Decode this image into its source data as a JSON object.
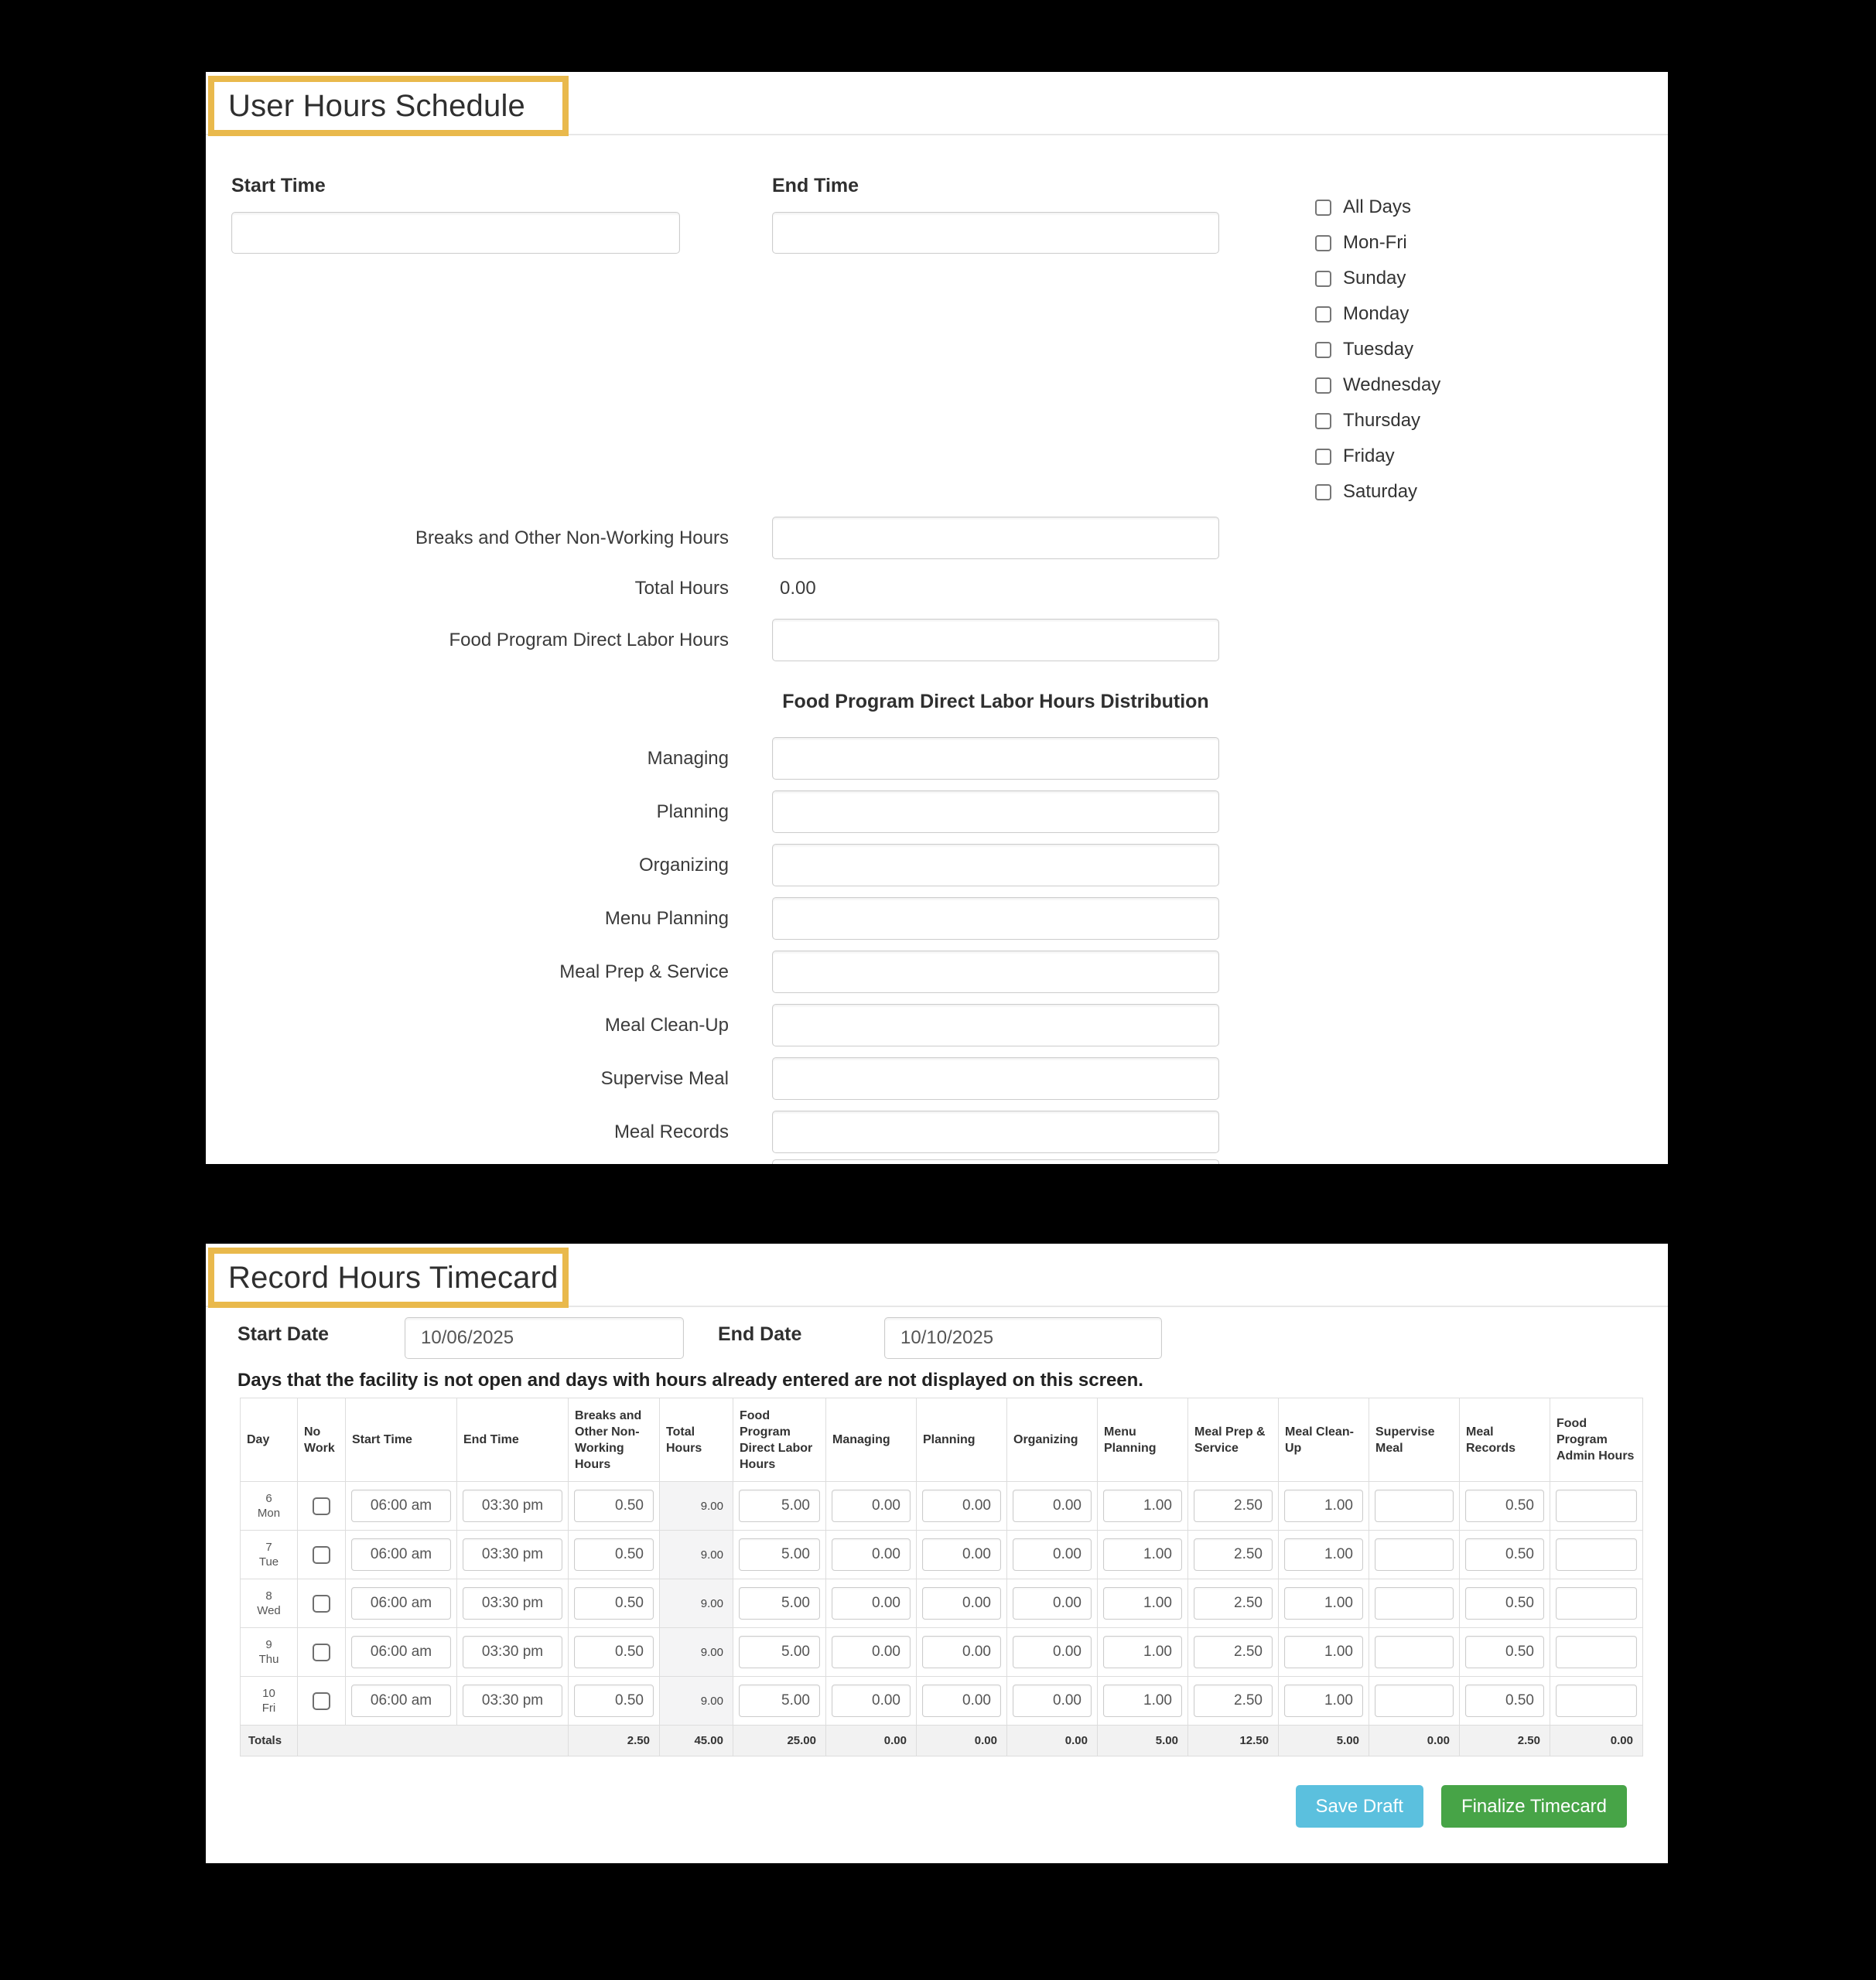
{
  "schedule_panel": {
    "title": "User Hours Schedule",
    "start_time_label": "Start Time",
    "end_time_label": "End Time",
    "start_time_value": "",
    "end_time_value": "",
    "day_checkboxes": [
      "All Days",
      "Mon-Fri",
      "Sunday",
      "Monday",
      "Tuesday",
      "Wednesday",
      "Thursday",
      "Friday",
      "Saturday"
    ],
    "breaks_label": "Breaks and Other Non-Working Hours",
    "total_hours_label": "Total Hours",
    "total_hours_value": "0.00",
    "food_program_label": "Food Program Direct Labor Hours",
    "distribution_heading": "Food Program Direct Labor Hours Distribution",
    "distribution_rows": [
      "Managing",
      "Planning",
      "Organizing",
      "Menu Planning",
      "Meal Prep & Service",
      "Meal Clean-Up",
      "Supervise Meal",
      "Meal Records"
    ]
  },
  "timecard_panel": {
    "title": "Record Hours Timecard",
    "start_date_label": "Start Date",
    "start_date_value": "10/06/2025",
    "end_date_label": "End Date",
    "end_date_value": "10/10/2025",
    "note": "Days that the facility is not open and days with hours already entered are not displayed on this screen.",
    "table": {
      "headers": [
        "Day",
        "No Work",
        "Start Time",
        "End Time",
        "Breaks and Other Non-Working Hours",
        "Total Hours",
        "Food Program Direct Labor Hours",
        "Managing",
        "Planning",
        "Organizing",
        "Menu Planning",
        "Meal Prep & Service",
        "Meal Clean-Up",
        "Supervise Meal",
        "Meal Records",
        "Food Program Admin Hours"
      ],
      "rows": [
        {
          "day_num": "6",
          "day_abbr": "Mon",
          "no_work_checked": false,
          "start_time": "06:00 am",
          "end_time": "03:30 pm",
          "breaks": "0.50",
          "total_hours": "9.00",
          "fp_direct_labor": "5.00",
          "managing": "0.00",
          "planning": "0.00",
          "organizing": "0.00",
          "menu_planning": "1.00",
          "meal_prep_service": "2.50",
          "meal_clean_up": "1.00",
          "supervise_meal": "",
          "meal_records": "0.50",
          "fp_admin_hours": ""
        },
        {
          "day_num": "7",
          "day_abbr": "Tue",
          "no_work_checked": false,
          "start_time": "06:00 am",
          "end_time": "03:30 pm",
          "breaks": "0.50",
          "total_hours": "9.00",
          "fp_direct_labor": "5.00",
          "managing": "0.00",
          "planning": "0.00",
          "organizing": "0.00",
          "menu_planning": "1.00",
          "meal_prep_service": "2.50",
          "meal_clean_up": "1.00",
          "supervise_meal": "",
          "meal_records": "0.50",
          "fp_admin_hours": ""
        },
        {
          "day_num": "8",
          "day_abbr": "Wed",
          "no_work_checked": false,
          "start_time": "06:00 am",
          "end_time": "03:30 pm",
          "breaks": "0.50",
          "total_hours": "9.00",
          "fp_direct_labor": "5.00",
          "managing": "0.00",
          "planning": "0.00",
          "organizing": "0.00",
          "menu_planning": "1.00",
          "meal_prep_service": "2.50",
          "meal_clean_up": "1.00",
          "supervise_meal": "",
          "meal_records": "0.50",
          "fp_admin_hours": ""
        },
        {
          "day_num": "9",
          "day_abbr": "Thu",
          "no_work_checked": false,
          "start_time": "06:00 am",
          "end_time": "03:30 pm",
          "breaks": "0.50",
          "total_hours": "9.00",
          "fp_direct_labor": "5.00",
          "managing": "0.00",
          "planning": "0.00",
          "organizing": "0.00",
          "menu_planning": "1.00",
          "meal_prep_service": "2.50",
          "meal_clean_up": "1.00",
          "supervise_meal": "",
          "meal_records": "0.50",
          "fp_admin_hours": ""
        },
        {
          "day_num": "10",
          "day_abbr": "Fri",
          "no_work_checked": false,
          "start_time": "06:00 am",
          "end_time": "03:30 pm",
          "breaks": "0.50",
          "total_hours": "9.00",
          "fp_direct_labor": "5.00",
          "managing": "0.00",
          "planning": "0.00",
          "organizing": "0.00",
          "menu_planning": "1.00",
          "meal_prep_service": "2.50",
          "meal_clean_up": "1.00",
          "supervise_meal": "",
          "meal_records": "0.50",
          "fp_admin_hours": ""
        }
      ],
      "totals_label": "Totals",
      "totals": [
        "2.50",
        "45.00",
        "25.00",
        "0.00",
        "0.00",
        "0.00",
        "5.00",
        "12.50",
        "5.00",
        "0.00",
        "2.50",
        "0.00"
      ]
    },
    "save_draft_label": "Save Draft",
    "finalize_label": "Finalize Timecard"
  },
  "colors": {
    "highlight_border": "#e9b94c",
    "save_draft_bg": "#5bc0de",
    "finalize_bg": "#47a447",
    "readonly_cell_bg": "#f4f4f5",
    "totals_row_bg": "#f2f2f2"
  }
}
